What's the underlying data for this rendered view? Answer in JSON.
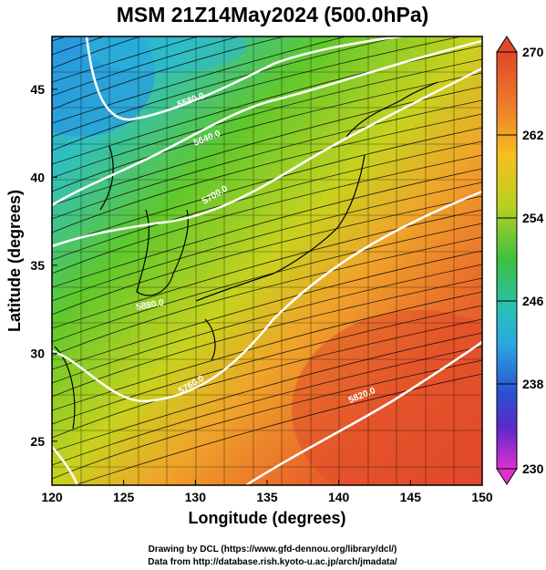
{
  "title": "MSM 21Z14May2024 (500.0hPa)",
  "x_axis": {
    "label": "Longitude (degrees)",
    "range": [
      120,
      150
    ],
    "ticks": [
      120,
      125,
      130,
      135,
      140,
      145,
      150
    ]
  },
  "y_axis": {
    "label": "Latitude  (degrees)",
    "range": [
      22.5,
      48
    ],
    "ticks": [
      25,
      30,
      35,
      40,
      45
    ]
  },
  "colorbar": {
    "min": 230,
    "max": 270,
    "tick_labels": [
      "270",
      "262",
      "254",
      "246",
      "238",
      "230"
    ],
    "colors": [
      "#e05a2a",
      "#f08a2a",
      "#f6c01e",
      "#c8d21e",
      "#5fc82c",
      "#2ec48a",
      "#2ab8d8",
      "#2a86e0",
      "#2a40c8",
      "#8a2ac8",
      "#e030d0"
    ]
  },
  "contour_labels": [
    "5580.0",
    "5640.0",
    "5700.0",
    "5760.0",
    "5820.0",
    "5880.0"
  ],
  "credits": {
    "line1": "Drawing by DCL (https://www.gfd-dennou.org/library/dcl/)",
    "line2": "Data from http://database.rish.kyoto-u.ac.jp/arch/jmadata/"
  }
}
